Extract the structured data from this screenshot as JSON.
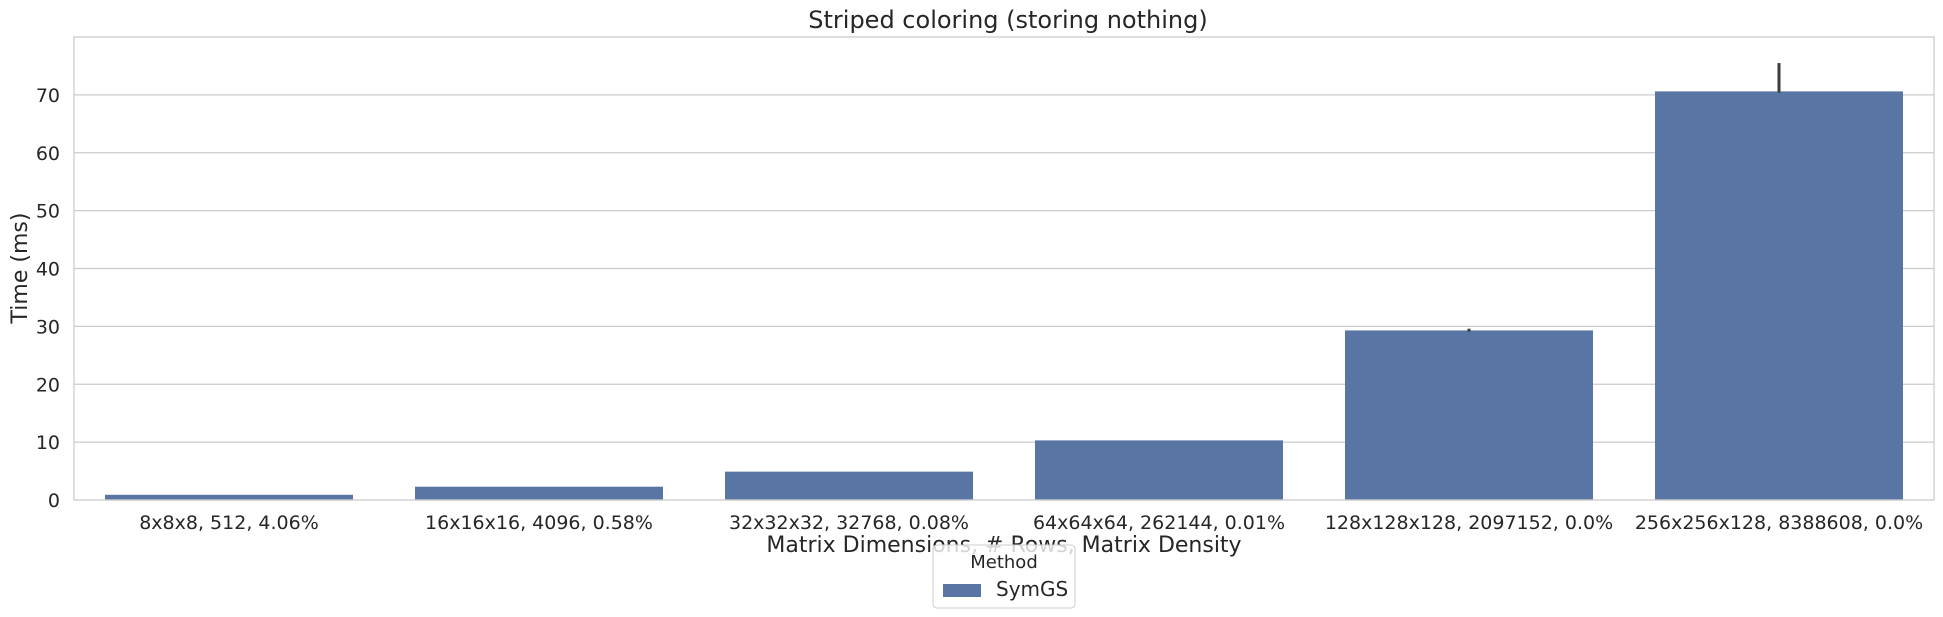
{
  "chart_data": {
    "type": "bar",
    "title": "Striped coloring (storing nothing)",
    "xlabel": "Matrix Dimensions, # Rows, Matrix Density",
    "ylabel": "Time (ms)",
    "ylim": [
      0,
      80
    ],
    "yticks": [
      0,
      10,
      20,
      30,
      40,
      50,
      60,
      70
    ],
    "grid": true,
    "categories": [
      "8x8x8, 512, 4.06%",
      "16x16x16, 4096, 0.58%",
      "32x32x32, 32768, 0.08%",
      "64x64x64, 262144, 0.01%",
      "128x128x128, 2097152, 0.0%",
      "256x256x128, 8388608, 0.0%"
    ],
    "series": [
      {
        "name": "SymGS",
        "color": "#5875a4",
        "values": [
          0.9,
          2.3,
          4.9,
          10.3,
          29.3,
          70.6
        ],
        "error": [
          [
            0.9,
            0.9
          ],
          [
            2.3,
            2.3
          ],
          [
            4.9,
            4.9
          ],
          [
            10.3,
            10.3
          ],
          [
            29.1,
            29.6
          ],
          [
            70.4,
            75.5
          ]
        ]
      }
    ],
    "legend": {
      "title": "Method",
      "placement": "bottom-center",
      "entries": [
        "SymGS"
      ]
    }
  }
}
